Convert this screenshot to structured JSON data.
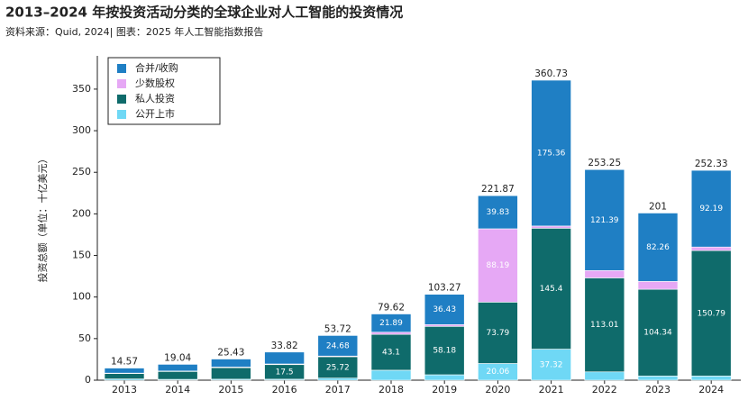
{
  "chart_data": {
    "type": "stacked_bar",
    "title": "2013–2024 年按投资活动分类的全球企业对人工智能的投资情况",
    "subtitle": "资料来源：Quid, 2024| 图表：2025 年人工智能指数报告",
    "y_label": "投资总额（单位：十亿美元）",
    "categories": [
      "2013",
      "2014",
      "2015",
      "2016",
      "2017",
      "2018",
      "2019",
      "2020",
      "2021",
      "2022",
      "2023",
      "2024"
    ],
    "series": [
      {
        "name": "公开上市",
        "color": "#6fd8f5",
        "values": [
          1.5,
          1,
          1.2,
          1.2,
          2.5,
          12,
          6.5,
          20.06,
          37.32,
          10,
          5,
          5
        ]
      },
      {
        "name": "私人投资",
        "color": "#0f6b6b",
        "values": [
          6.5,
          9.5,
          13.8,
          17.5,
          25.72,
          43.1,
          58.18,
          73.79,
          145.4,
          113.01,
          104.34,
          150.79
        ]
      },
      {
        "name": "少数股权",
        "color": "#e6a8f5",
        "values": [
          0.5,
          0.5,
          0.8,
          0.8,
          0.82,
          2.63,
          2.16,
          88.19,
          2.65,
          8.85,
          9.4,
          4.35
        ]
      },
      {
        "name": "合并/收购",
        "color": "#1f7fc4",
        "values": [
          6.07,
          8.04,
          9.63,
          14.32,
          24.68,
          21.89,
          36.43,
          39.83,
          175.36,
          121.39,
          82.26,
          92.19
        ]
      }
    ],
    "totals": [
      14.57,
      19.04,
      25.43,
      33.82,
      53.72,
      79.62,
      103.27,
      221.87,
      360.73,
      253.25,
      201,
      252.33
    ],
    "ylim": [
      0,
      390
    ],
    "yticks": [
      0,
      50,
      100,
      150,
      200,
      250,
      300,
      350
    ]
  }
}
